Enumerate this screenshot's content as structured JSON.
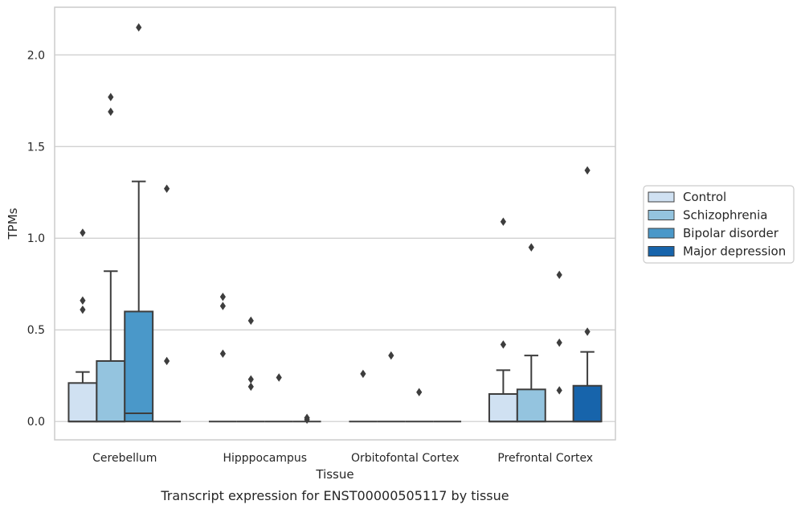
{
  "chart_data": {
    "type": "box",
    "xlabel": "Tissue",
    "ylabel": "TPMs",
    "caption": "Transcript expression for ENST00000505117 by tissue",
    "ylim": [
      -0.1,
      2.26
    ],
    "yticks": [
      0.0,
      0.5,
      1.0,
      1.5,
      2.0
    ],
    "ytick_labels": [
      "0.0",
      "0.5",
      "1.0",
      "1.5",
      "2.0"
    ],
    "grid": "horizontal",
    "legend_position": "right",
    "categories": [
      "Cerebellum",
      "Hipppocampus",
      "Orbitofontal Cortex",
      "Prefrontal Cortex"
    ],
    "series": [
      {
        "name": "Control",
        "color": "#d0e1f2",
        "boxes": [
          {
            "q1": 0.0,
            "median": 0.0,
            "q3": 0.21,
            "whisker_low": 0.0,
            "whisker_high": 0.27,
            "outliers": [
              1.03,
              0.66,
              0.61
            ]
          },
          {
            "q1": 0.0,
            "median": 0.0,
            "q3": 0.0,
            "whisker_low": 0.0,
            "whisker_high": 0.0,
            "outliers": [
              0.68,
              0.63,
              0.37
            ]
          },
          {
            "q1": 0.0,
            "median": 0.0,
            "q3": 0.0,
            "whisker_low": 0.0,
            "whisker_high": 0.0,
            "outliers": [
              0.26
            ]
          },
          {
            "q1": 0.0,
            "median": 0.0,
            "q3": 0.15,
            "whisker_low": 0.0,
            "whisker_high": 0.28,
            "outliers": [
              1.09,
              0.42
            ]
          }
        ]
      },
      {
        "name": "Schizophrenia",
        "color": "#94c4df",
        "boxes": [
          {
            "q1": 0.0,
            "median": 0.0,
            "q3": 0.33,
            "whisker_low": 0.0,
            "whisker_high": 0.82,
            "outliers": [
              1.77,
              1.69
            ]
          },
          {
            "q1": 0.0,
            "median": 0.0,
            "q3": 0.0,
            "whisker_low": 0.0,
            "whisker_high": 0.0,
            "outliers": [
              0.55,
              0.23,
              0.19
            ]
          },
          {
            "q1": 0.0,
            "median": 0.0,
            "q3": 0.0,
            "whisker_low": 0.0,
            "whisker_high": 0.0,
            "outliers": [
              0.36
            ]
          },
          {
            "q1": 0.0,
            "median": 0.0,
            "q3": 0.175,
            "whisker_low": 0.0,
            "whisker_high": 0.36,
            "outliers": [
              0.95
            ]
          }
        ]
      },
      {
        "name": "Bipolar disorder",
        "color": "#4a98c9",
        "boxes": [
          {
            "q1": 0.0,
            "median": 0.045,
            "q3": 0.6,
            "whisker_low": 0.0,
            "whisker_high": 1.31,
            "outliers": [
              2.15
            ]
          },
          {
            "q1": 0.0,
            "median": 0.0,
            "q3": 0.0,
            "whisker_low": 0.0,
            "whisker_high": 0.0,
            "outliers": [
              0.24
            ]
          },
          {
            "q1": 0.0,
            "median": 0.0,
            "q3": 0.0,
            "whisker_low": 0.0,
            "whisker_high": 0.0,
            "outliers": [
              0.16
            ]
          },
          {
            "q1": 0.0,
            "median": 0.0,
            "q3": 0.0,
            "whisker_low": 0.0,
            "whisker_high": 0.0,
            "outliers": [
              0.8,
              0.43,
              0.17
            ]
          }
        ]
      },
      {
        "name": "Major depression",
        "color": "#1764ab",
        "boxes": [
          {
            "q1": 0.0,
            "median": 0.0,
            "q3": 0.0,
            "whisker_low": 0.0,
            "whisker_high": 0.0,
            "outliers": [
              1.27,
              0.33
            ]
          },
          {
            "q1": 0.0,
            "median": 0.0,
            "q3": 0.0,
            "whisker_low": 0.0,
            "whisker_high": 0.0,
            "outliers": [
              0.02,
              0.01
            ]
          },
          {
            "q1": 0.0,
            "median": 0.0,
            "q3": 0.0,
            "whisker_low": 0.0,
            "whisker_high": 0.0,
            "outliers": []
          },
          {
            "q1": 0.0,
            "median": 0.0,
            "q3": 0.195,
            "whisker_low": 0.0,
            "whisker_high": 0.38,
            "outliers": [
              1.37,
              0.49
            ]
          }
        ]
      }
    ]
  }
}
